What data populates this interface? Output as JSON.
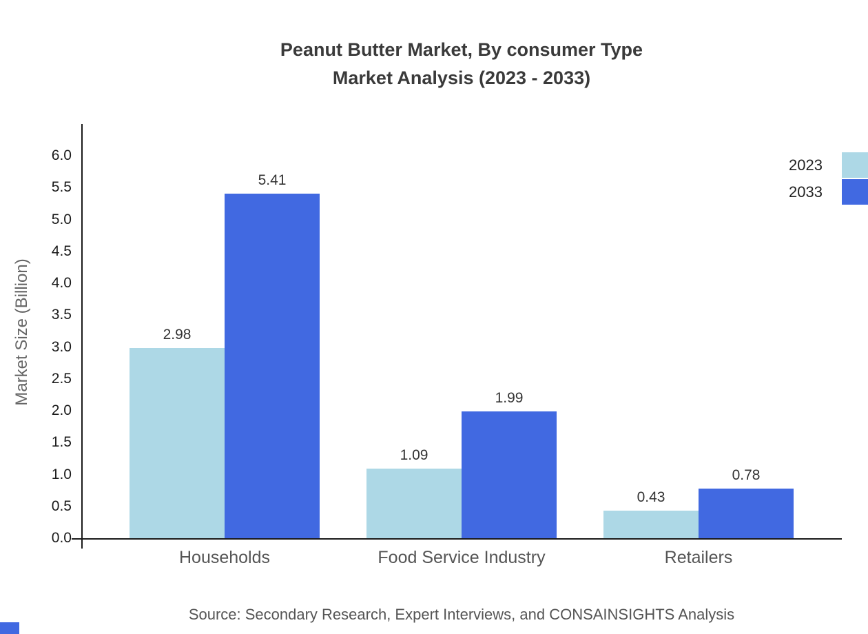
{
  "title": {
    "line1": "Peanut Butter Market, By consumer Type",
    "line2": "Market Analysis (2023 - 2033)"
  },
  "source": "Source: Secondary Research, Expert Interviews, and CONSAINSIGHTS Analysis",
  "colors": {
    "series_2023": "#ADD8E6",
    "series_2033": "#4169E1",
    "axis": "#1a1a1a",
    "corner_accent": "#4169E1"
  },
  "chart_data": {
    "type": "bar",
    "title": "Peanut Butter Market, By consumer Type Market Analysis (2023 - 2033)",
    "categories": [
      "Households",
      "Food Service Industry",
      "Retailers"
    ],
    "series": [
      {
        "name": "2023",
        "color": "#ADD8E6",
        "values": [
          2.98,
          1.09,
          0.43
        ]
      },
      {
        "name": "2033",
        "color": "#4169E1",
        "values": [
          5.41,
          1.99,
          0.78
        ]
      }
    ],
    "xlabel": "",
    "ylabel": "Market Size (Billion)",
    "ylim": [
      0,
      6.5
    ],
    "yticks": [
      0.0,
      0.5,
      1.0,
      1.5,
      2.0,
      2.5,
      3.0,
      3.5,
      4.0,
      4.5,
      5.0,
      5.5,
      6.0
    ],
    "grid": false,
    "legend_position": "top-right",
    "value_labels": true
  }
}
